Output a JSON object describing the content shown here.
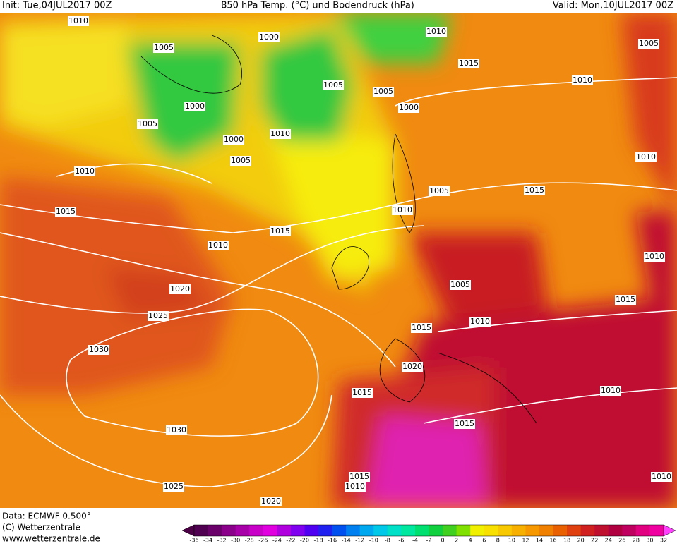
{
  "header": {
    "init": "Init: Tue,04JUL2017 00Z",
    "title": "850 hPa Temp. (°C) und Bodendruck (hPa)",
    "valid": "Valid: Mon,10JUL2017 00Z"
  },
  "map": {
    "isobar_labels": [
      "1010",
      "1005",
      "1000",
      "1010",
      "1015",
      "1005",
      "1010",
      "1005",
      "1005",
      "1000",
      "1000",
      "1005",
      "1010",
      "1000",
      "1005",
      "1010",
      "1010",
      "1015",
      "1005",
      "1015",
      "1010",
      "1015",
      "1010",
      "1010",
      "1005",
      "1020",
      "1015",
      "1025",
      "1010",
      "1015",
      "1030",
      "1020",
      "1015",
      "1010",
      "1015",
      "1030",
      "1015",
      "1010",
      "1010",
      "1025",
      "1020"
    ]
  },
  "colorbar": {
    "labels": [
      -36,
      -34,
      -32,
      -30,
      -28,
      -26,
      -24,
      -22,
      -20,
      -18,
      -16,
      -14,
      -12,
      -10,
      -8,
      -6,
      -4,
      -2,
      0,
      2,
      4,
      6,
      8,
      10,
      12,
      14,
      16,
      18,
      20,
      22,
      24,
      26,
      28,
      30,
      32
    ],
    "colors": [
      "#500050",
      "#6a006a",
      "#8a008a",
      "#a800a8",
      "#c800c8",
      "#e000e0",
      "#b000e0",
      "#8000f0",
      "#5000f0",
      "#2020f0",
      "#0050f0",
      "#0080f0",
      "#00a8f0",
      "#00c8e8",
      "#00e0c8",
      "#00e8a0",
      "#00e070",
      "#10d040",
      "#40d020",
      "#80e000",
      "#f0f000",
      "#f8e000",
      "#f8c800",
      "#f8b000",
      "#f89800",
      "#f08000",
      "#e86000",
      "#e04010",
      "#d02020",
      "#c01030",
      "#b00040",
      "#c00060",
      "#e00080",
      "#f000a0"
    ],
    "low_color": "#4b0045",
    "high_color": "#ff40ff"
  },
  "footer": {
    "data": "Data: ECMWF  0.500°",
    "copyright": "(C) Wetterzentrale",
    "url": "www.wetterzentrale.de"
  }
}
